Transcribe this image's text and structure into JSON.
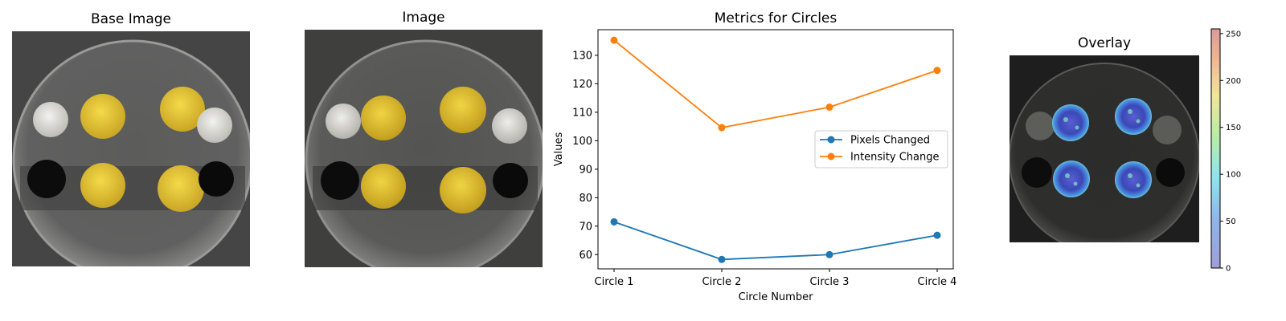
{
  "panels": {
    "base_title": "Base Image",
    "image_title": "Image",
    "overlay_title": "Overlay"
  },
  "chart_data": {
    "type": "line",
    "title": "Metrics for Circles",
    "xlabel": "Circle Number",
    "ylabel": "Values",
    "categories": [
      "Circle 1",
      "Circle 2",
      "Circle 3",
      "Circle 4"
    ],
    "ylim": [
      55,
      139
    ],
    "yticks": [
      60,
      70,
      80,
      90,
      100,
      110,
      120,
      130
    ],
    "grid": false,
    "legend_position": "center-right",
    "series": [
      {
        "name": "Pixels Changed",
        "values": [
          71.5,
          58.3,
          60.0,
          66.8
        ],
        "color": "#1f77b4"
      },
      {
        "name": "Intensity Change",
        "values": [
          135.3,
          104.6,
          111.8,
          124.7
        ],
        "color": "#ff7f0e"
      }
    ]
  },
  "colorbar": {
    "ticks": [
      0,
      50,
      100,
      150,
      200,
      250
    ],
    "range": [
      0,
      255
    ],
    "colormap": "jet (semi-transparent)"
  }
}
